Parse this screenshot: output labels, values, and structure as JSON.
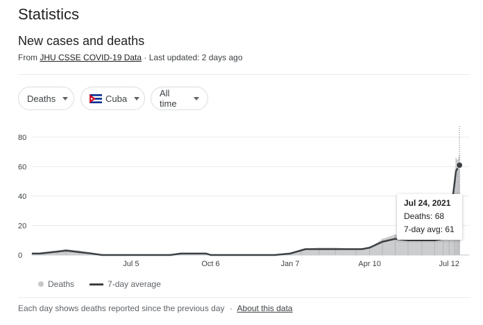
{
  "page": {
    "title": "Statistics"
  },
  "section": {
    "title": "New cases and deaths",
    "source_prefix": "From",
    "source_link": "JHU CSSE COVID-19 Data",
    "updated": "· Last updated: 2 days ago"
  },
  "filters": {
    "metric": "Deaths",
    "location": "Cuba",
    "range": "All time"
  },
  "tooltip": {
    "date": "Jul 24, 2021",
    "deaths": "Deaths: 68",
    "avg": "7-day avg: 61"
  },
  "legend": {
    "bars": "Deaths",
    "line": "7-day average"
  },
  "footer": {
    "note": "Each day shows deaths reported since the previous day",
    "separator": "·",
    "link": "About this data"
  },
  "colors": {
    "bars": "#c7c8ca",
    "line": "#3c4043",
    "grid": "#e8eaed"
  },
  "chart_data": {
    "type": "area",
    "ylim": [
      0,
      80
    ],
    "yticks": [
      0,
      20,
      40,
      60,
      80
    ],
    "xticks": [
      "Jul 5",
      "Oct 6",
      "Jan 7",
      "Apr 10",
      "Jul 12"
    ],
    "series": [
      {
        "name": "Deaths",
        "kind": "bars",
        "x": [
          "2020-03-11",
          "2020-03-25",
          "2020-04-10",
          "2020-04-20",
          "2020-05-05",
          "2020-05-25",
          "2020-06-10",
          "2020-07-05",
          "2020-08-20",
          "2020-09-10",
          "2020-10-01",
          "2020-10-06",
          "2020-11-15",
          "2020-12-20",
          "2021-01-07",
          "2021-01-20",
          "2021-02-10",
          "2021-03-01",
          "2021-03-25",
          "2021-04-10",
          "2021-04-25",
          "2021-05-10",
          "2021-05-25",
          "2021-06-10",
          "2021-06-25",
          "2021-07-05",
          "2021-07-12",
          "2021-07-18",
          "2021-07-20",
          "2021-07-22",
          "2021-07-24"
        ],
        "values": [
          1,
          2,
          3,
          4,
          3,
          1,
          0,
          0,
          0,
          1,
          1,
          0,
          0,
          0,
          1,
          4,
          5,
          5,
          4,
          5,
          11,
          14,
          12,
          12,
          13,
          20,
          32,
          48,
          66,
          64,
          68
        ]
      },
      {
        "name": "7-day average",
        "kind": "line",
        "x": [
          "2020-03-11",
          "2020-03-20",
          "2020-04-05",
          "2020-04-20",
          "2020-05-05",
          "2020-05-20",
          "2020-06-01",
          "2020-07-05",
          "2020-08-20",
          "2020-09-01",
          "2020-09-20",
          "2020-10-01",
          "2020-10-06",
          "2020-11-15",
          "2020-12-20",
          "2021-01-07",
          "2021-01-25",
          "2021-02-20",
          "2021-03-20",
          "2021-04-01",
          "2021-04-10",
          "2021-04-25",
          "2021-05-10",
          "2021-05-25",
          "2021-06-10",
          "2021-06-25",
          "2021-07-05",
          "2021-07-12",
          "2021-07-16",
          "2021-07-20",
          "2021-07-24"
        ],
        "values": [
          1,
          1,
          2,
          3,
          2,
          1,
          0,
          0,
          0,
          1,
          1,
          1,
          0,
          0,
          0,
          1,
          4,
          4,
          4,
          4,
          5,
          9,
          11,
          10,
          10,
          10,
          11,
          13,
          38,
          57,
          61
        ]
      }
    ],
    "highlight": {
      "date": "2021-07-24",
      "value": 61
    }
  }
}
